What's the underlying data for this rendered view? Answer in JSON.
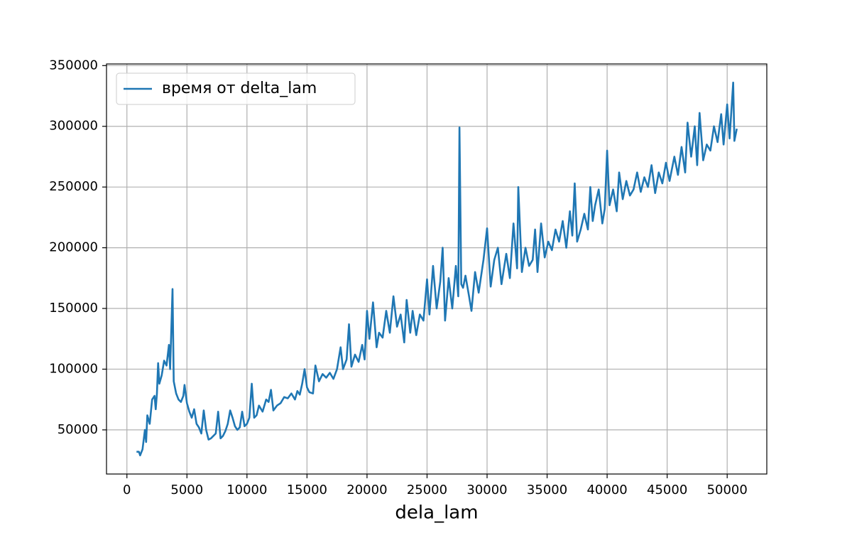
{
  "chart_data": {
    "type": "line",
    "x_label": "dela_lam",
    "x": [
      800,
      1000,
      1100,
      1300,
      1500,
      1600,
      1700,
      1900,
      2100,
      2300,
      2400,
      2500,
      2600,
      2700,
      2900,
      3100,
      3300,
      3500,
      3600,
      3800,
      3900,
      4100,
      4300,
      4500,
      4700,
      4800,
      5000,
      5200,
      5400,
      5600,
      5800,
      6000,
      6200,
      6400,
      6600,
      6800,
      7000,
      7200,
      7400,
      7600,
      7800,
      8000,
      8200,
      8400,
      8600,
      8800,
      9000,
      9200,
      9400,
      9600,
      9800,
      10000,
      10200,
      10400,
      10600,
      10800,
      11000,
      11300,
      11600,
      11800,
      12000,
      12200,
      12500,
      12800,
      13100,
      13400,
      13700,
      14000,
      14200,
      14400,
      14600,
      14800,
      15000,
      15200,
      15500,
      15700,
      16000,
      16300,
      16600,
      16900,
      17200,
      17500,
      17800,
      18000,
      18300,
      18500,
      18700,
      19000,
      19300,
      19600,
      19800,
      20000,
      20200,
      20500,
      20800,
      21000,
      21300,
      21600,
      21900,
      22200,
      22500,
      22800,
      23100,
      23300,
      23600,
      23800,
      24100,
      24400,
      24700,
      25000,
      25200,
      25500,
      25800,
      26100,
      26300,
      26500,
      26800,
      27100,
      27400,
      27600,
      27700,
      27850,
      28000,
      28200,
      28500,
      28700,
      29000,
      29300,
      29700,
      30000,
      30300,
      30600,
      30900,
      31200,
      31600,
      31900,
      32200,
      32500,
      32600,
      32900,
      33200,
      33500,
      33800,
      34000,
      34200,
      34500,
      34800,
      35100,
      35400,
      35700,
      36000,
      36300,
      36600,
      36900,
      37100,
      37300,
      37500,
      37800,
      38100,
      38400,
      38600,
      38800,
      39000,
      39300,
      39600,
      39800,
      40000,
      40200,
      40500,
      40800,
      41000,
      41300,
      41600,
      41900,
      42200,
      42500,
      42800,
      43100,
      43400,
      43700,
      44000,
      44300,
      44600,
      44900,
      45200,
      45600,
      45900,
      46200,
      46500,
      46700,
      47000,
      47300,
      47500,
      47700,
      48000,
      48300,
      48600,
      48900,
      49200,
      49500,
      49700,
      50000,
      50200,
      50500,
      50600,
      50800
    ],
    "series": [
      {
        "name": "время от delta_lam",
        "color": "#1f77b4",
        "values": [
          32000,
          32000,
          29000,
          34000,
          50000,
          40000,
          62000,
          55000,
          75000,
          78000,
          67000,
          80000,
          105000,
          88000,
          95000,
          107000,
          103000,
          120000,
          100000,
          166000,
          90000,
          80000,
          75000,
          73000,
          78000,
          87000,
          72000,
          65000,
          60000,
          67000,
          55000,
          52000,
          47000,
          66000,
          50000,
          42000,
          43000,
          45000,
          47000,
          65000,
          43000,
          45000,
          49000,
          55000,
          66000,
          60000,
          53000,
          50000,
          52000,
          65000,
          53000,
          55000,
          60000,
          88000,
          60000,
          62000,
          70000,
          65000,
          75000,
          73000,
          83000,
          66000,
          70000,
          72000,
          77000,
          76000,
          80000,
          75000,
          82000,
          79000,
          88000,
          100000,
          85000,
          81000,
          80000,
          103000,
          90000,
          96000,
          93000,
          97000,
          92000,
          100000,
          118000,
          100000,
          108000,
          137000,
          102000,
          112000,
          106000,
          120000,
          108000,
          148000,
          125000,
          155000,
          118000,
          130000,
          126000,
          148000,
          130000,
          160000,
          135000,
          145000,
          122000,
          157000,
          130000,
          148000,
          128000,
          145000,
          140000,
          174000,
          145000,
          185000,
          150000,
          172000,
          200000,
          140000,
          175000,
          150000,
          185000,
          160000,
          299000,
          170000,
          167000,
          177000,
          160000,
          148000,
          180000,
          163000,
          190000,
          216000,
          168000,
          190000,
          200000,
          170000,
          195000,
          175000,
          220000,
          183000,
          250000,
          180000,
          200000,
          185000,
          190000,
          215000,
          180000,
          220000,
          192000,
          205000,
          198000,
          215000,
          205000,
          222000,
          200000,
          230000,
          210000,
          253000,
          205000,
          215000,
          228000,
          215000,
          250000,
          222000,
          235000,
          248000,
          220000,
          232000,
          280000,
          235000,
          248000,
          230000,
          262000,
          240000,
          255000,
          243000,
          248000,
          262000,
          246000,
          258000,
          250000,
          268000,
          245000,
          262000,
          253000,
          270000,
          255000,
          275000,
          260000,
          283000,
          262000,
          303000,
          275000,
          300000,
          268000,
          311000,
          272000,
          285000,
          280000,
          300000,
          287000,
          310000,
          285000,
          318000,
          290000,
          336000,
          288000,
          298000
        ]
      }
    ],
    "xlim": [
      -1700,
      53300
    ],
    "ylim": [
      13650,
      351350
    ],
    "xticks": [
      0,
      5000,
      10000,
      15000,
      20000,
      25000,
      30000,
      35000,
      40000,
      45000,
      50000
    ],
    "yticks": [
      50000,
      100000,
      150000,
      200000,
      250000,
      300000,
      350000
    ],
    "grid": true,
    "legend": "upper left"
  }
}
